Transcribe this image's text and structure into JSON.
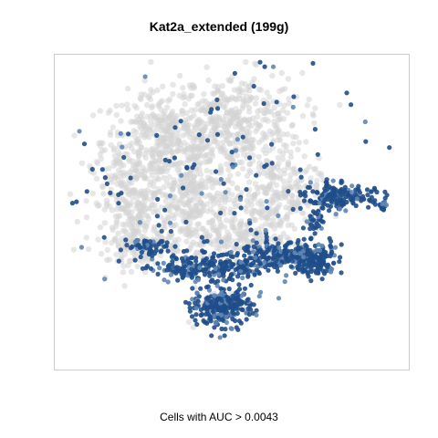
{
  "chart_data": {
    "type": "scatter",
    "title": "Kat2a_extended (199g)",
    "xlabel": "Cells with AUC > 0.0043",
    "ylabel": "",
    "axes_visible": false,
    "grid": false,
    "legend": "none",
    "colors": {
      "below_threshold": "#d3d3d3",
      "above_threshold": "#1f4e8a",
      "above_threshold_light": "#5f86b5",
      "frame": "#cccccc"
    },
    "point_groups": [
      {
        "name": "",
        "role": "below_threshold",
        "clusters": [
          {
            "cx": -0.38,
            "cy": 0.45,
            "rx": 0.32,
            "ry": 0.28,
            "count": 420
          },
          {
            "cx": 0.02,
            "cy": 0.55,
            "rx": 0.34,
            "ry": 0.3,
            "count": 420
          },
          {
            "cx": -0.55,
            "cy": 0.05,
            "rx": 0.22,
            "ry": 0.3,
            "count": 260
          },
          {
            "cx": -0.2,
            "cy": 0.05,
            "rx": 0.22,
            "ry": 0.25,
            "count": 260
          },
          {
            "cx": 0.25,
            "cy": 0.1,
            "rx": 0.22,
            "ry": 0.22,
            "count": 240
          },
          {
            "cx": 0.05,
            "cy": -0.18,
            "rx": 0.28,
            "ry": 0.14,
            "count": 180
          },
          {
            "cx": -0.5,
            "cy": -0.2,
            "rx": 0.2,
            "ry": 0.12,
            "count": 120
          },
          {
            "cx": -0.1,
            "cy": -0.6,
            "rx": 0.14,
            "ry": 0.1,
            "count": 60
          }
        ]
      },
      {
        "name": "",
        "role": "above_threshold",
        "clusters": [
          {
            "cx": -0.05,
            "cy": -0.6,
            "rx": 0.15,
            "ry": 0.12,
            "count": 260
          },
          {
            "cx": -0.12,
            "cy": -0.35,
            "rx": 0.32,
            "ry": 0.08,
            "count": 260
          },
          {
            "cx": 0.25,
            "cy": -0.27,
            "rx": 0.2,
            "ry": 0.08,
            "count": 160
          },
          {
            "cx": 0.47,
            "cy": -0.3,
            "rx": 0.12,
            "ry": 0.09,
            "count": 180
          },
          {
            "cx": 0.6,
            "cy": 0.1,
            "rx": 0.16,
            "ry": 0.07,
            "count": 170
          },
          {
            "cx": 0.85,
            "cy": 0.05,
            "rx": 0.03,
            "ry": 0.03,
            "count": 20
          },
          {
            "cx": -0.45,
            "cy": -0.22,
            "rx": 0.12,
            "ry": 0.05,
            "count": 50
          },
          {
            "cx": 0.48,
            "cy": -0.05,
            "rx": 0.05,
            "ry": 0.1,
            "count": 40
          },
          {
            "cx": -0.1,
            "cy": 0.3,
            "rx": 0.8,
            "ry": 0.65,
            "count": 130
          }
        ]
      }
    ]
  }
}
